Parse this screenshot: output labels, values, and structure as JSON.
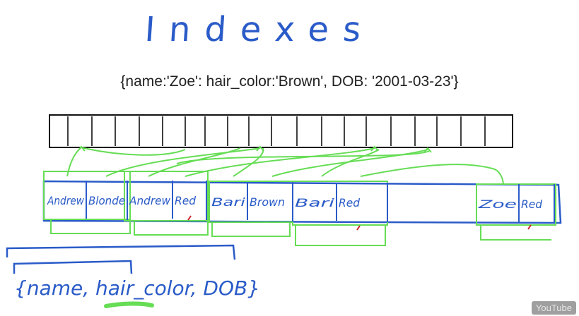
{
  "title": "Indexes",
  "document_line": "{name:'Zoe': hair_color:'Brown', DOB: '2001-03-23'}",
  "index_entries": [
    {
      "name": "Andrew",
      "color": "Blonde"
    },
    {
      "name": "Andrew",
      "color": "Red"
    },
    {
      "name": "Bari",
      "color": "Brown"
    },
    {
      "name": "Bari",
      "color": "Red"
    },
    {
      "name": "Zoe",
      "color": "Red"
    }
  ],
  "index_spec": "{name, hair_color, DOB}",
  "watermark": "YouTube",
  "colors": {
    "ink_blue": "#2a5bc8",
    "ink_green": "#66dd55",
    "ink_red": "#cc2222",
    "ink_black": "#111111"
  }
}
